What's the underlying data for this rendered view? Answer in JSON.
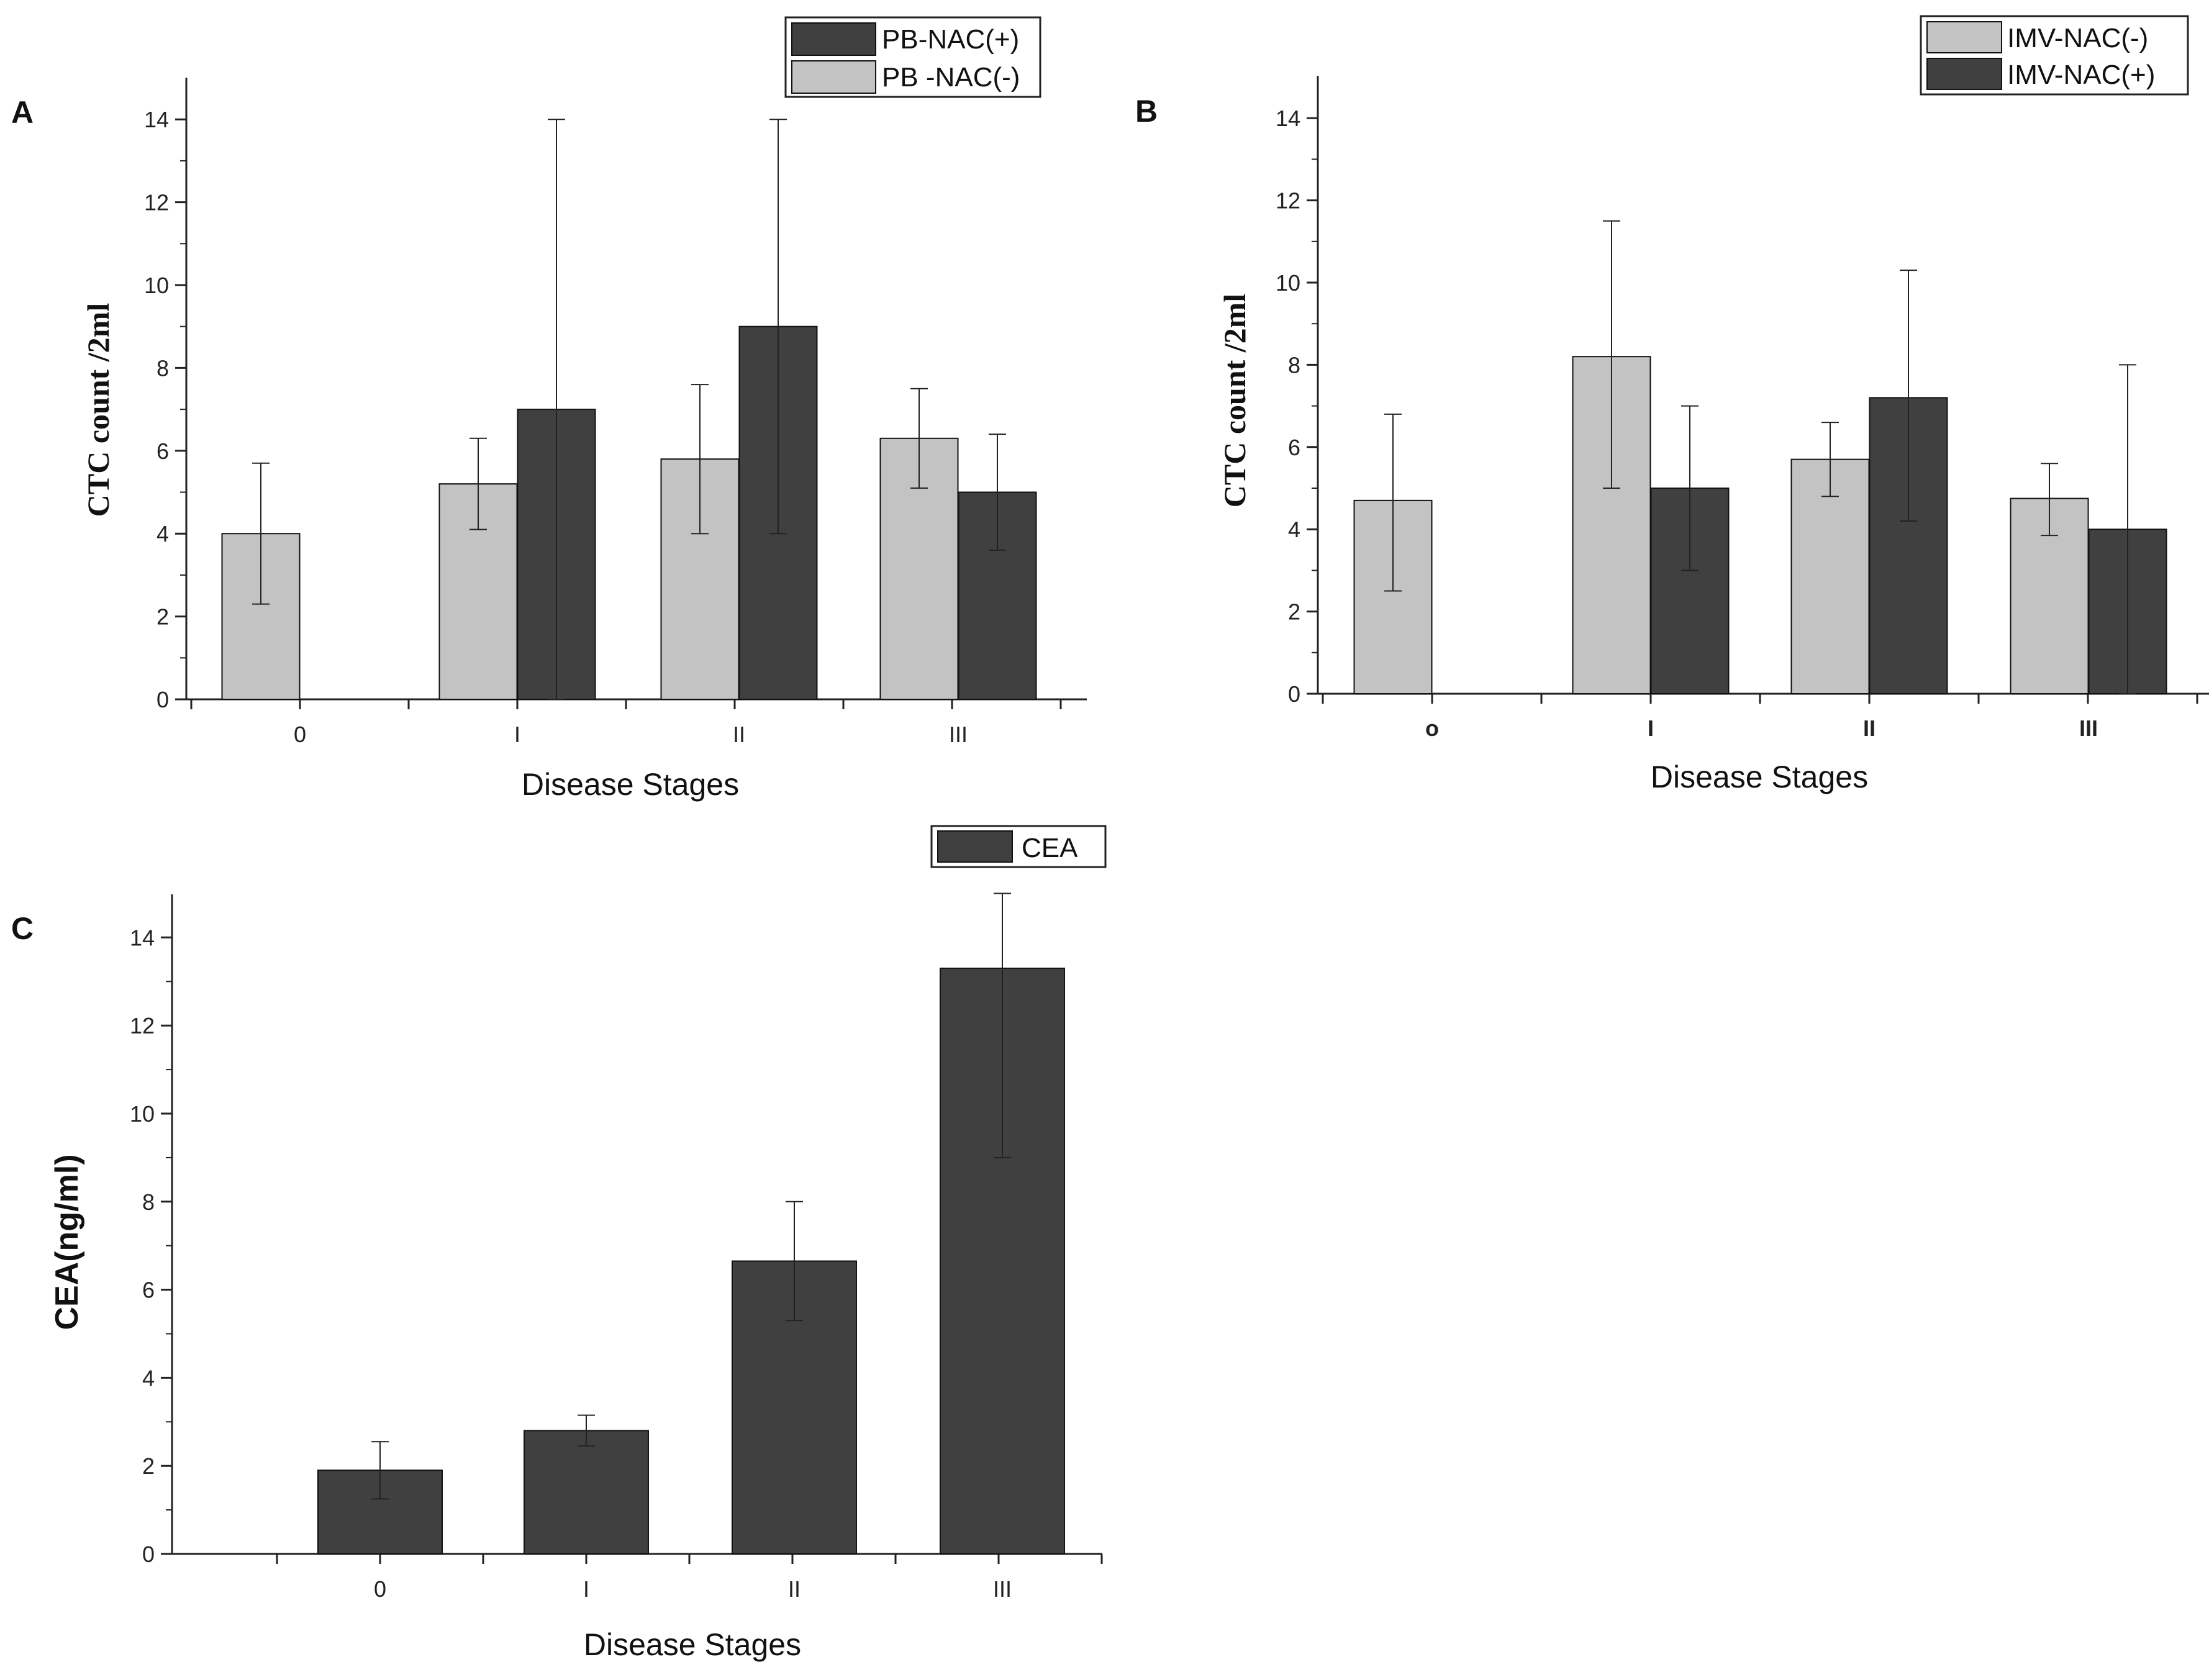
{
  "colors": {
    "light": "#c3c3c3",
    "dark": "#404040",
    "axis": "#222222"
  },
  "chart_data": [
    {
      "panel_label": "A",
      "type": "bar",
      "xlabel": "Disease Stages",
      "ylabel": "CTC count /2ml",
      "categories": [
        "0",
        "I",
        "II",
        "III"
      ],
      "ylim": [
        0,
        15
      ],
      "yticks": [
        "0",
        "2",
        "4",
        "6",
        "8",
        "10",
        "12",
        "14"
      ],
      "legend": [
        "PB-NAC(+)",
        "PB -NAC(-)"
      ],
      "series": [
        {
          "name": "PB -NAC(-)",
          "values": [
            4.0,
            5.2,
            5.8,
            6.3
          ],
          "err_low": [
            2.3,
            4.1,
            4.0,
            5.1
          ],
          "err_high": [
            5.7,
            6.3,
            7.6,
            7.5
          ]
        },
        {
          "name": "PB-NAC(+)",
          "values": [
            null,
            7.0,
            9.0,
            5.0
          ],
          "err_low": [
            null,
            0,
            4.0,
            3.6
          ],
          "err_high": [
            null,
            14.0,
            14.0,
            6.4
          ]
        }
      ]
    },
    {
      "panel_label": "B",
      "type": "bar",
      "xlabel": "Disease Stages",
      "ylabel": "CTC count /2ml",
      "categories": [
        "o",
        "I",
        "II",
        "III"
      ],
      "ylim": [
        0,
        15
      ],
      "yticks": [
        "0",
        "2",
        "4",
        "6",
        "8",
        "10",
        "12",
        "14"
      ],
      "legend": [
        "IMV-NAC(-)",
        "IMV-NAC(+)"
      ],
      "series": [
        {
          "name": "IMV-NAC(-)",
          "values": [
            4.7,
            8.2,
            5.7,
            4.75
          ],
          "err_low": [
            2.5,
            5.0,
            4.8,
            3.85
          ],
          "err_high": [
            6.8,
            11.5,
            6.6,
            5.6
          ]
        },
        {
          "name": "IMV-NAC(+)",
          "values": [
            null,
            5.0,
            7.2,
            4.0
          ],
          "err_low": [
            null,
            3.0,
            4.2,
            0
          ],
          "err_high": [
            null,
            7.0,
            10.3,
            8.0
          ]
        }
      ]
    },
    {
      "panel_label": "C",
      "type": "bar",
      "xlabel": "Disease Stages",
      "ylabel": "CEA(ng/ml)",
      "categories": [
        "0",
        "I",
        "II",
        "III"
      ],
      "ylim": [
        0,
        15
      ],
      "yticks": [
        "0",
        "2",
        "4",
        "6",
        "8",
        "10",
        "12",
        "14"
      ],
      "legend": [
        "CEA"
      ],
      "series": [
        {
          "name": "CEA",
          "values": [
            1.9,
            2.8,
            6.65,
            13.3
          ],
          "err_low": [
            1.25,
            2.45,
            5.3,
            9.0
          ],
          "err_high": [
            2.55,
            3.15,
            8.0,
            15.0
          ]
        }
      ]
    }
  ]
}
